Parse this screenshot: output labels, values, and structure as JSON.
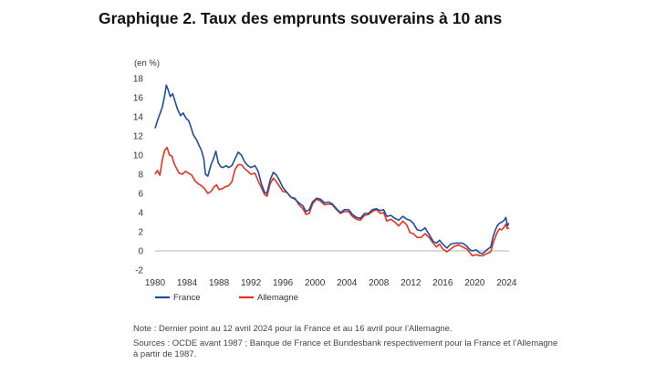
{
  "title": "Graphique 2. Taux des emprunts souverains à 10 ans",
  "note": "Note : Dernier point au 12 avril 2024 pour la France et au 16 avril pour l’Allemagne.",
  "sources": "Sources : OCDE avant 1987 ; Banque de France et Bundesbank respectivement pour la France et l’Allemagne à partir de 1987.",
  "chart_data": {
    "type": "line",
    "unit_label": "(en %)",
    "xlim": [
      1980,
      2024.3
    ],
    "ylim": [
      -2,
      18
    ],
    "x_ticks": [
      1980,
      1984,
      1988,
      1992,
      1996,
      2000,
      2004,
      2008,
      2012,
      2016,
      2020,
      2024
    ],
    "y_ticks": [
      -2,
      0,
      2,
      4,
      6,
      8,
      10,
      12,
      14,
      16,
      18
    ],
    "grid": false,
    "legend_position": "bottom-left",
    "series": [
      {
        "name": "France",
        "color": "#1f4e9e",
        "x": [
          1980.0,
          1980.3,
          1980.6,
          1980.9,
          1981.2,
          1981.4,
          1981.6,
          1981.9,
          1982.2,
          1982.5,
          1982.8,
          1983.2,
          1983.5,
          1983.9,
          1984.2,
          1984.5,
          1984.8,
          1985.2,
          1985.5,
          1985.8,
          1986.1,
          1986.3,
          1986.6,
          1987.0,
          1987.3,
          1987.6,
          1987.9,
          1988.2,
          1988.5,
          1988.9,
          1989.2,
          1989.6,
          1990.0,
          1990.4,
          1990.8,
          1991.2,
          1991.6,
          1992.0,
          1992.5,
          1992.9,
          1993.3,
          1993.7,
          1994.0,
          1994.4,
          1994.8,
          1995.2,
          1995.6,
          1996.0,
          1996.5,
          1997.0,
          1997.5,
          1998.0,
          1998.5,
          1998.9,
          1999.3,
          1999.7,
          2000.2,
          2000.7,
          2001.2,
          2001.7,
          2002.2,
          2002.7,
          2003.2,
          2003.7,
          2004.2,
          2004.7,
          2005.2,
          2005.7,
          2006.2,
          2006.7,
          2007.2,
          2007.7,
          2008.2,
          2008.6,
          2009.0,
          2009.5,
          2010.0,
          2010.5,
          2011.0,
          2011.5,
          2011.9,
          2012.3,
          2012.8,
          2013.3,
          2013.8,
          2014.3,
          2014.8,
          2015.2,
          2015.6,
          2016.0,
          2016.5,
          2017.0,
          2017.5,
          2018.0,
          2018.5,
          2019.0,
          2019.4,
          2019.7,
          2020.2,
          2020.6,
          2021.0,
          2021.5,
          2022.0,
          2022.3,
          2022.6,
          2022.8,
          2023.1,
          2023.4,
          2023.7,
          2023.9,
          2024.1,
          2024.28
        ],
        "y": [
          12.8,
          13.6,
          14.3,
          15.0,
          16.2,
          17.3,
          16.9,
          16.1,
          16.4,
          15.6,
          14.8,
          14.1,
          14.4,
          13.8,
          13.6,
          12.9,
          12.1,
          11.6,
          11.0,
          10.5,
          9.6,
          8.0,
          7.8,
          9.0,
          9.6,
          10.4,
          9.2,
          8.8,
          8.7,
          8.9,
          8.7,
          8.9,
          9.6,
          10.3,
          10.0,
          9.3,
          8.9,
          8.7,
          8.9,
          8.3,
          7.0,
          6.1,
          6.0,
          7.4,
          8.2,
          7.9,
          7.3,
          6.6,
          6.1,
          5.6,
          5.4,
          5.0,
          4.7,
          4.1,
          4.3,
          5.1,
          5.5,
          5.4,
          5.0,
          5.1,
          4.9,
          4.4,
          4.0,
          4.3,
          4.3,
          3.8,
          3.5,
          3.4,
          3.9,
          3.9,
          4.3,
          4.4,
          4.2,
          4.3,
          3.6,
          3.7,
          3.4,
          3.2,
          3.6,
          3.3,
          3.2,
          2.9,
          2.2,
          2.1,
          2.4,
          1.7,
          1.0,
          0.8,
          1.1,
          0.7,
          0.3,
          0.7,
          0.8,
          0.8,
          0.8,
          0.5,
          0.1,
          0.0,
          0.1,
          -0.2,
          -0.3,
          0.1,
          0.4,
          1.5,
          2.2,
          2.6,
          2.9,
          3.0,
          3.2,
          3.5,
          2.6,
          2.9
        ]
      },
      {
        "name": "Allemagne",
        "color": "#e8321e",
        "x": [
          1980.0,
          1980.3,
          1980.6,
          1980.9,
          1981.2,
          1981.5,
          1981.8,
          1982.1,
          1982.4,
          1982.7,
          1983.0,
          1983.4,
          1983.8,
          1984.2,
          1984.6,
          1985.0,
          1985.4,
          1985.8,
          1986.2,
          1986.6,
          1987.0,
          1987.4,
          1987.7,
          1988.0,
          1988.4,
          1988.8,
          1989.2,
          1989.6,
          1990.0,
          1990.4,
          1990.8,
          1991.2,
          1991.6,
          1992.0,
          1992.5,
          1992.9,
          1993.3,
          1993.7,
          1994.0,
          1994.4,
          1994.8,
          1995.2,
          1995.6,
          1996.0,
          1996.5,
          1997.0,
          1997.5,
          1998.0,
          1998.5,
          1998.9,
          1999.3,
          1999.7,
          2000.2,
          2000.7,
          2001.2,
          2001.7,
          2002.2,
          2002.7,
          2003.2,
          2003.7,
          2004.2,
          2004.7,
          2005.2,
          2005.7,
          2006.2,
          2006.7,
          2007.2,
          2007.7,
          2008.2,
          2008.6,
          2009.0,
          2009.5,
          2010.0,
          2010.5,
          2011.0,
          2011.5,
          2011.9,
          2012.3,
          2012.8,
          2013.3,
          2013.8,
          2014.3,
          2014.8,
          2015.2,
          2015.6,
          2016.0,
          2016.5,
          2017.0,
          2017.5,
          2018.0,
          2018.5,
          2019.0,
          2019.4,
          2019.7,
          2020.2,
          2020.6,
          2021.0,
          2021.5,
          2022.0,
          2022.3,
          2022.6,
          2022.8,
          2023.1,
          2023.4,
          2023.7,
          2023.9,
          2024.1,
          2024.29
        ],
        "y": [
          8.0,
          8.4,
          7.9,
          9.5,
          10.5,
          10.8,
          10.0,
          9.9,
          9.1,
          8.6,
          8.1,
          8.0,
          8.3,
          8.1,
          7.9,
          7.3,
          7.0,
          6.8,
          6.5,
          6.0,
          6.2,
          6.7,
          6.9,
          6.4,
          6.5,
          6.7,
          6.8,
          7.2,
          8.5,
          9.0,
          9.0,
          8.6,
          8.3,
          8.0,
          8.1,
          7.3,
          6.6,
          5.9,
          5.7,
          7.0,
          7.6,
          7.2,
          6.7,
          6.2,
          6.1,
          5.6,
          5.5,
          4.8,
          4.4,
          3.8,
          3.9,
          4.9,
          5.4,
          5.2,
          4.8,
          4.9,
          4.8,
          4.3,
          3.9,
          4.1,
          4.1,
          3.6,
          3.3,
          3.2,
          3.7,
          3.8,
          4.1,
          4.3,
          3.9,
          4.0,
          3.1,
          3.3,
          3.0,
          2.6,
          3.1,
          2.7,
          1.9,
          1.8,
          1.4,
          1.4,
          1.8,
          1.4,
          0.8,
          0.4,
          0.7,
          0.2,
          -0.1,
          0.2,
          0.5,
          0.6,
          0.4,
          0.2,
          -0.2,
          -0.5,
          -0.4,
          -0.5,
          -0.5,
          -0.3,
          -0.1,
          0.8,
          1.5,
          1.9,
          2.3,
          2.2,
          2.5,
          2.8,
          2.3,
          2.4
        ]
      }
    ]
  }
}
